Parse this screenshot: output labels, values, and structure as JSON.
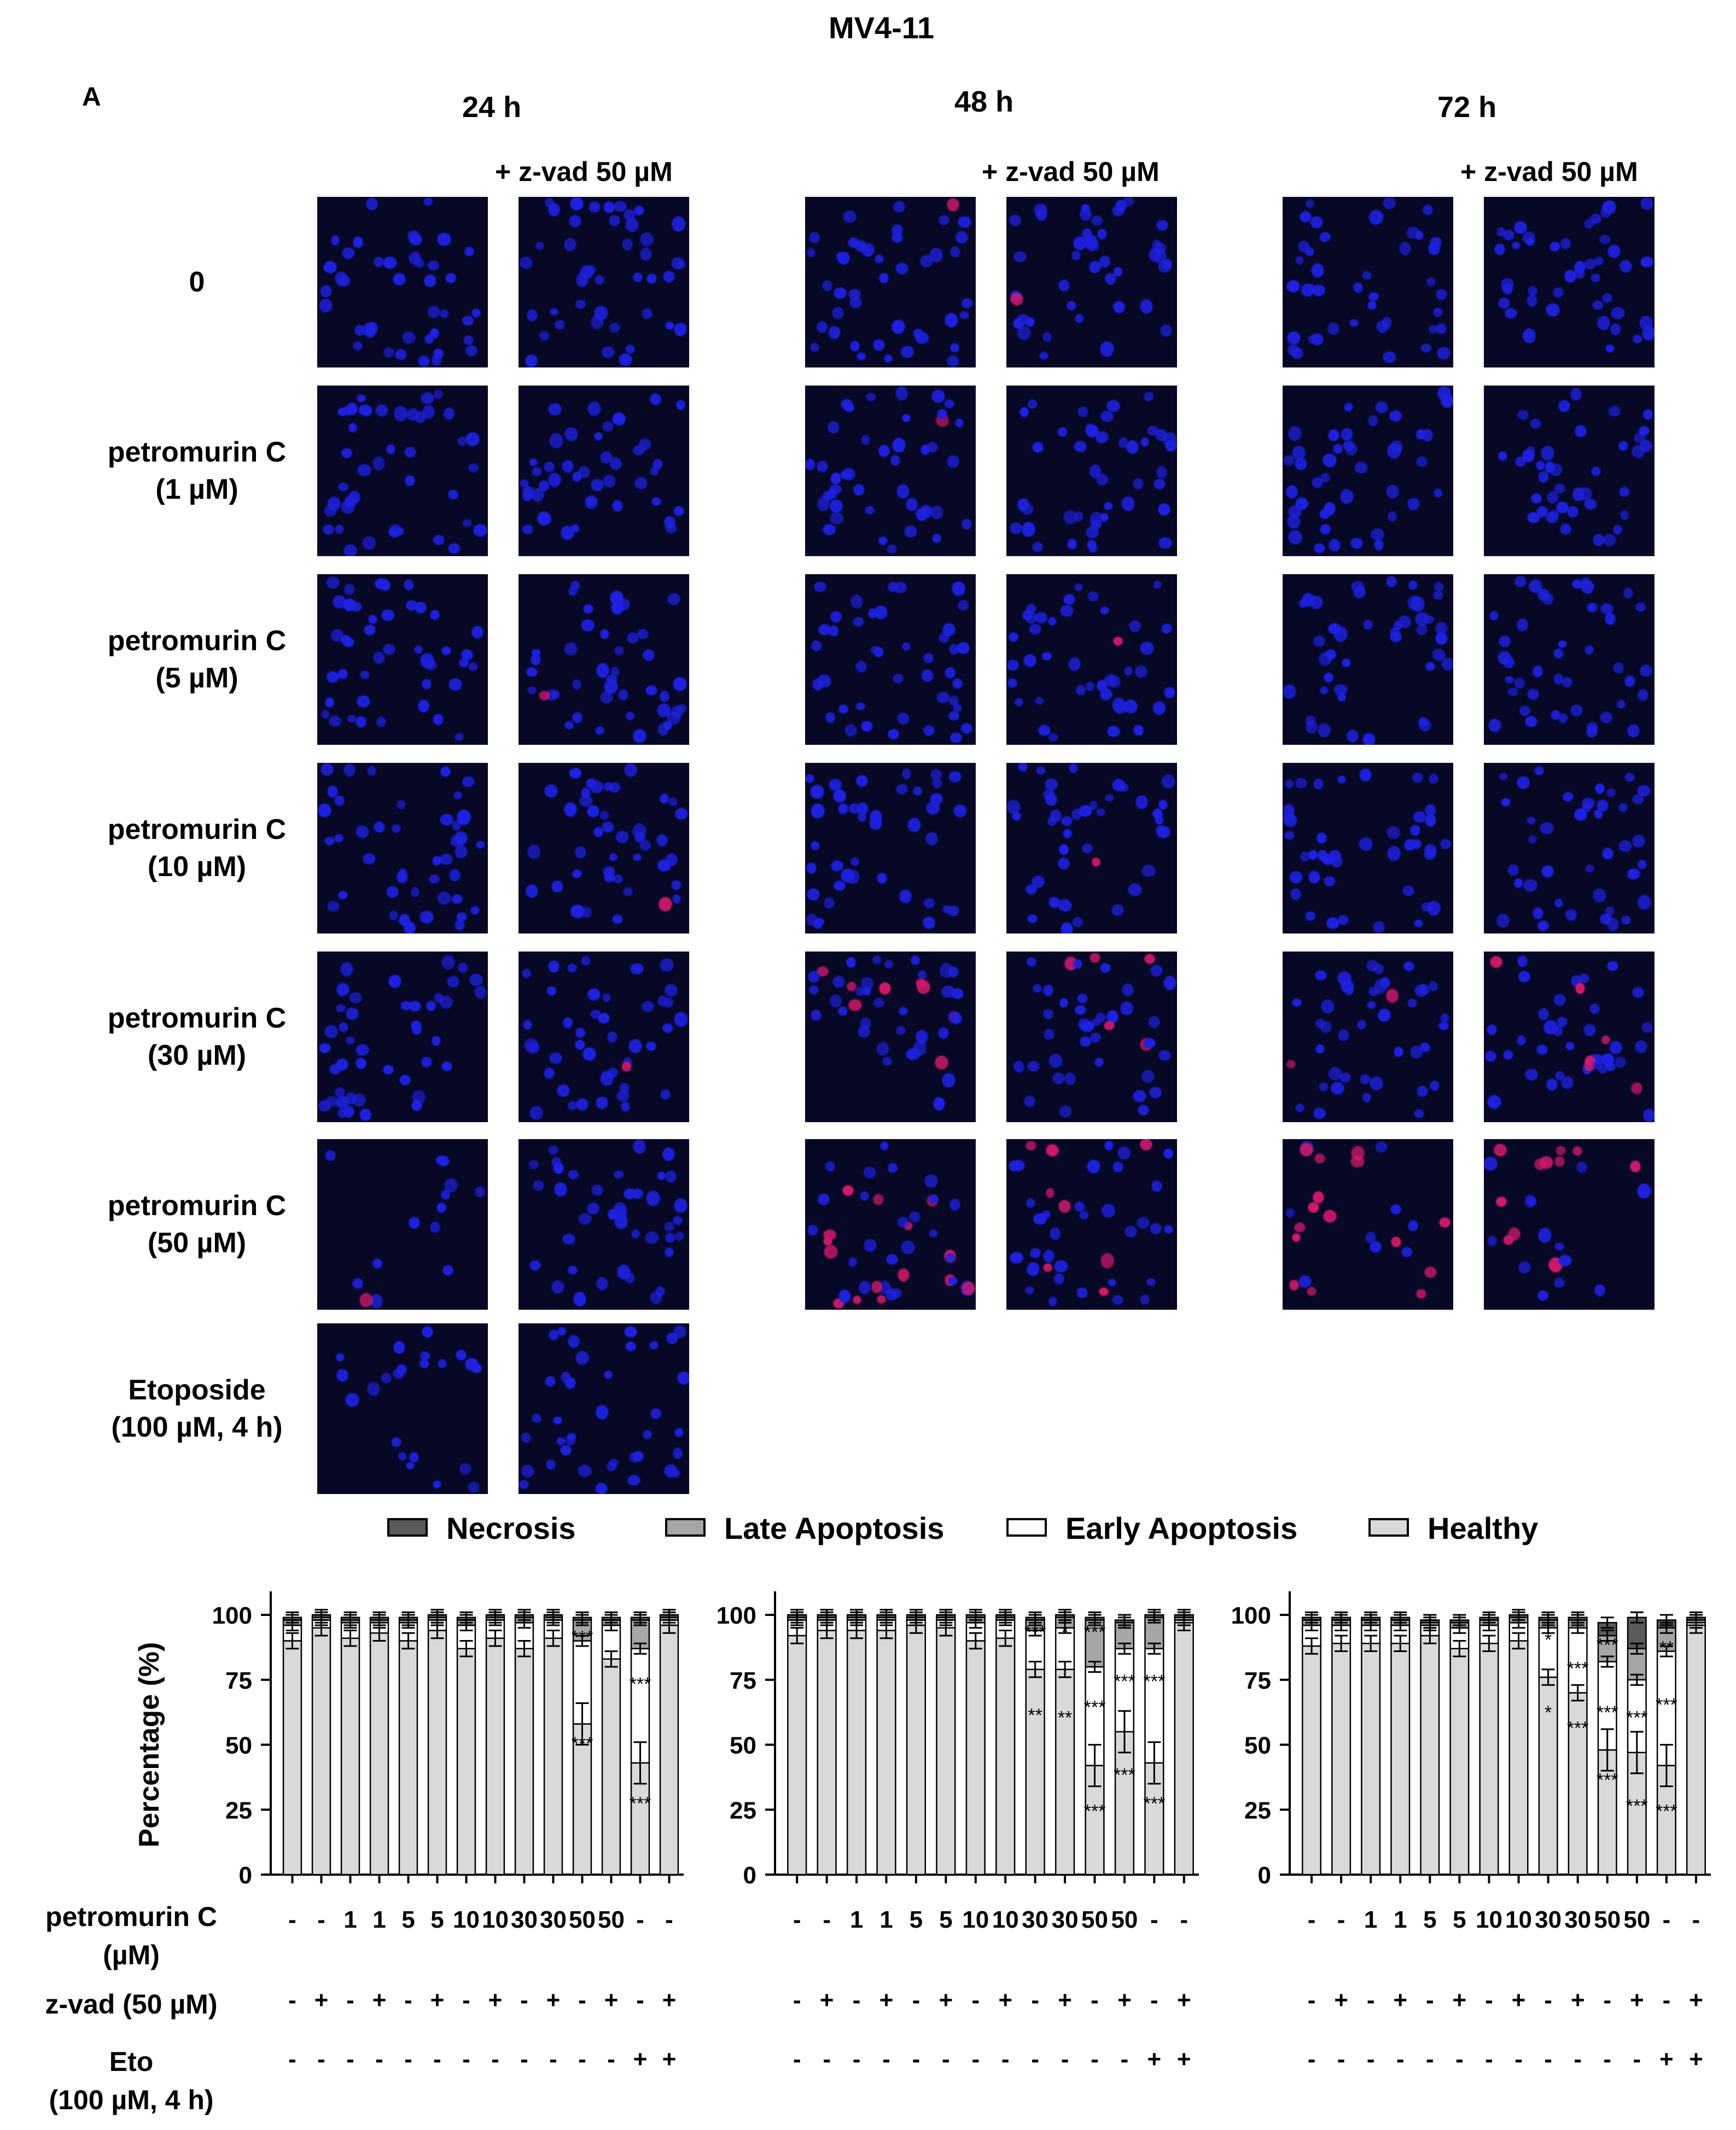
{
  "figure": {
    "title": "MV4-11",
    "panel_label": "A",
    "time_points": [
      "24 h",
      "48 h",
      "72 h"
    ],
    "zvad_label": "+ z-vad 50 µM",
    "row_labels": [
      {
        "l1": "0",
        "l2": ""
      },
      {
        "l1": "petromurin C",
        "l2": "(1 µM)"
      },
      {
        "l1": "petromurin C",
        "l2": "(5 µM)"
      },
      {
        "l1": "petromurin C",
        "l2": "(10 µM)"
      },
      {
        "l1": "petromurin C",
        "l2": "(30 µM)"
      },
      {
        "l1": "petromurin C",
        "l2": "(50 µM)"
      },
      {
        "l1": "Etoposide",
        "l2": "(100 µM, 4 h)"
      }
    ]
  },
  "legend": [
    {
      "label": "Necrosis",
      "color": "#5a5a5a"
    },
    {
      "label": "Late Apoptosis",
      "color": "#a6a6a6"
    },
    {
      "label": "Early Apoptosis",
      "color": "#ffffff"
    },
    {
      "label": "Healthy",
      "color": "#d9d9d9"
    }
  ],
  "colors": {
    "nucleus": "#1e22e0",
    "pi_positive": "#d01a6a",
    "background": "#070726"
  },
  "x_labels": {
    "petromurin_title": "petromurin C",
    "petromurin_unit": "(µM)",
    "petromurin_values": [
      "-",
      "-",
      "1",
      "1",
      "5",
      "5",
      "10",
      "10",
      "30",
      "30",
      "50",
      "50",
      "-",
      "-"
    ],
    "zvad_title": "z-vad (50 µM)",
    "zvad_values": [
      "-",
      "+",
      "-",
      "+",
      "-",
      "+",
      "-",
      "+",
      "-",
      "+",
      "-",
      "+",
      "-",
      "+"
    ],
    "eto_title": "Eto",
    "eto_unit": "(100 µM, 4 h)",
    "eto_values": [
      "-",
      "-",
      "-",
      "-",
      "-",
      "-",
      "-",
      "-",
      "-",
      "-",
      "-",
      "-",
      "+",
      "+"
    ]
  },
  "chart_data": [
    {
      "type": "bar",
      "stacked": true,
      "ylabel": "Percentage (%)",
      "ylim": [
        0,
        100
      ],
      "yticks": [
        0,
        25,
        50,
        75,
        100
      ],
      "categories": [
        "1",
        "2",
        "3",
        "4",
        "5",
        "6",
        "7",
        "8",
        "9",
        "10",
        "11",
        "12",
        "13",
        "14"
      ],
      "series": [
        {
          "name": "Healthy",
          "values": [
            90,
            95,
            91,
            93,
            90,
            94,
            87,
            91,
            87,
            91,
            58,
            83,
            43,
            96
          ]
        },
        {
          "name": "Early Apoptosis",
          "values": [
            6,
            3,
            6,
            4,
            7,
            4,
            9,
            7,
            10,
            7,
            32,
            13,
            44,
            2
          ]
        },
        {
          "name": "Late Apoptosis",
          "values": [
            2,
            1,
            1,
            1,
            1,
            1,
            2,
            1,
            2,
            1,
            8,
            2,
            11,
            1
          ]
        },
        {
          "name": "Necrosis",
          "values": [
            1,
            1,
            1,
            1,
            1,
            1,
            1,
            1,
            1,
            1,
            1,
            1,
            1,
            1
          ]
        }
      ],
      "annotations": [
        {
          "bar": 11,
          "y": 89,
          "text": "***"
        },
        {
          "bar": 11,
          "y": 48,
          "text": "***"
        },
        {
          "bar": 13,
          "y": 71,
          "text": "***"
        },
        {
          "bar": 13,
          "y": 25,
          "text": "***"
        }
      ]
    },
    {
      "type": "bar",
      "stacked": true,
      "ylabel": "",
      "ylim": [
        0,
        100
      ],
      "yticks": [
        0,
        25,
        50,
        75,
        100
      ],
      "categories": [
        "1",
        "2",
        "3",
        "4",
        "5",
        "6",
        "7",
        "8",
        "9",
        "10",
        "11",
        "12",
        "13",
        "14"
      ],
      "series": [
        {
          "name": "Healthy",
          "values": [
            92,
            94,
            94,
            94,
            96,
            95,
            90,
            91,
            79,
            79,
            42,
            55,
            43,
            97
          ]
        },
        {
          "name": "Early Apoptosis",
          "values": [
            6,
            4,
            4,
            4,
            2,
            3,
            7,
            7,
            15,
            16,
            38,
            32,
            44,
            1
          ]
        },
        {
          "name": "Late Apoptosis",
          "values": [
            1,
            1,
            1,
            1,
            1,
            1,
            2,
            1,
            4,
            4,
            18,
            10,
            12,
            1
          ]
        },
        {
          "name": "Necrosis",
          "values": [
            1,
            1,
            1,
            1,
            1,
            1,
            1,
            1,
            1,
            1,
            1,
            1,
            1,
            1
          ]
        }
      ],
      "annotations": [
        {
          "bar": 9,
          "y": 91,
          "text": "***"
        },
        {
          "bar": 9,
          "y": 59,
          "text": "**"
        },
        {
          "bar": 10,
          "y": 91,
          "text": "*"
        },
        {
          "bar": 10,
          "y": 58,
          "text": "**"
        },
        {
          "bar": 11,
          "y": 91,
          "text": "***"
        },
        {
          "bar": 11,
          "y": 62,
          "text": "***"
        },
        {
          "bar": 11,
          "y": 22,
          "text": "***"
        },
        {
          "bar": 12,
          "y": 72,
          "text": "***"
        },
        {
          "bar": 12,
          "y": 36,
          "text": "***"
        },
        {
          "bar": 13,
          "y": 72,
          "text": "***"
        },
        {
          "bar": 13,
          "y": 25,
          "text": "***"
        }
      ]
    },
    {
      "type": "bar",
      "stacked": true,
      "ylabel": "",
      "ylim": [
        0,
        100
      ],
      "yticks": [
        0,
        25,
        50,
        75,
        100
      ],
      "categories": [
        "1",
        "2",
        "3",
        "4",
        "5",
        "6",
        "7",
        "8",
        "9",
        "10",
        "11",
        "12",
        "13",
        "14"
      ],
      "series": [
        {
          "name": "Healthy",
          "values": [
            88,
            89,
            89,
            89,
            92,
            87,
            89,
            90,
            76,
            70,
            48,
            47,
            42,
            96
          ]
        },
        {
          "name": "Early Apoptosis",
          "values": [
            8,
            7,
            7,
            7,
            4,
            8,
            7,
            7,
            19,
            25,
            34,
            28,
            44,
            1
          ]
        },
        {
          "name": "Late Apoptosis",
          "values": [
            2,
            2,
            2,
            2,
            1,
            2,
            2,
            2,
            3,
            3,
            10,
            12,
            9,
            1
          ]
        },
        {
          "name": "Necrosis",
          "values": [
            1,
            1,
            1,
            1,
            1,
            1,
            1,
            1,
            1,
            1,
            5,
            12,
            3,
            1
          ]
        }
      ],
      "annotations": [
        {
          "bar": 9,
          "y": 88,
          "text": "*"
        },
        {
          "bar": 9,
          "y": 60,
          "text": "*"
        },
        {
          "bar": 10,
          "y": 77,
          "text": "***"
        },
        {
          "bar": 10,
          "y": 54,
          "text": "***"
        },
        {
          "bar": 11,
          "y": 86,
          "text": "***"
        },
        {
          "bar": 11,
          "y": 60,
          "text": "***"
        },
        {
          "bar": 11,
          "y": 34,
          "text": "***"
        },
        {
          "bar": 12,
          "y": 58,
          "text": "***"
        },
        {
          "bar": 12,
          "y": 24,
          "text": "***"
        },
        {
          "bar": 13,
          "y": 85,
          "text": "**"
        },
        {
          "bar": 13,
          "y": 63,
          "text": "***"
        },
        {
          "bar": 13,
          "y": 22,
          "text": "***"
        }
      ]
    }
  ]
}
